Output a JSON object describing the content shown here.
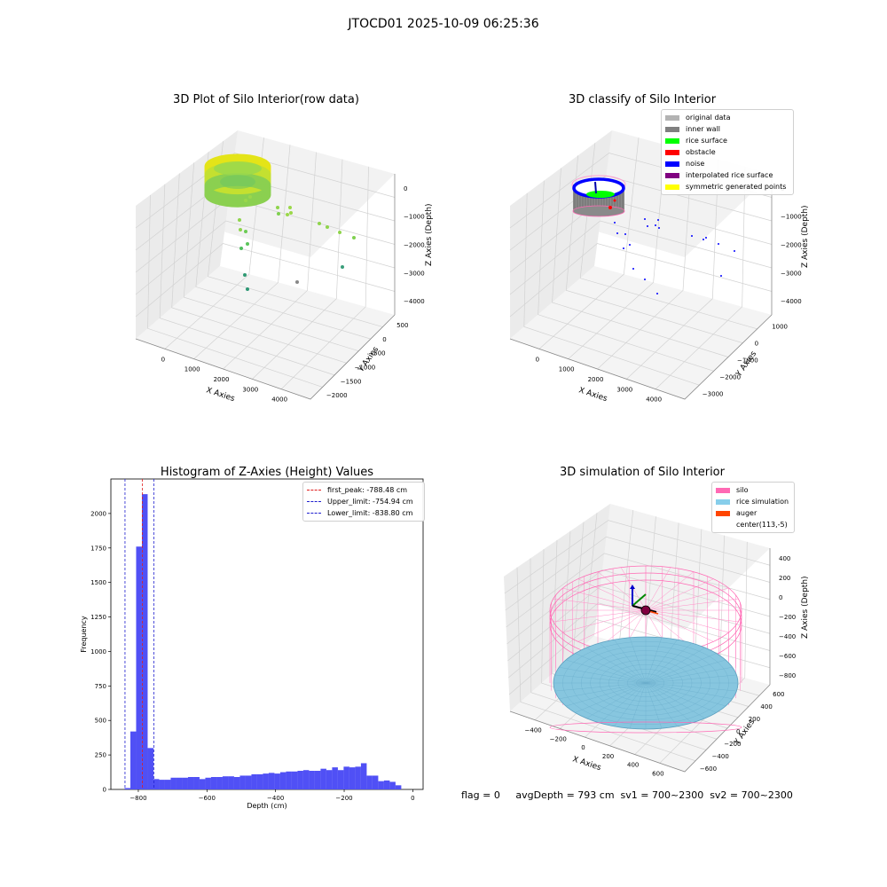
{
  "suptitle": "JTOCD01 2025-10-09 06:25:36",
  "footer": "flag = 0     avgDepth = 793 cm  sv1 = 700~2300  sv2 = 700~2300",
  "chart_data": [
    {
      "type": "scatter3d",
      "title": "3D Plot of Silo Interior(row data)",
      "xlabel": "X Axies",
      "ylabel": "Y Axies",
      "zlabel": "Z Axies (Depth)",
      "xticks": [
        "0",
        "1000",
        "2000",
        "3000",
        "4000"
      ],
      "yticks": [
        "500",
        "0",
        "−500",
        "−1000",
        "−1500",
        "−2000"
      ],
      "zticks": [
        "0",
        "−1000",
        "−2000",
        "−3000",
        "−4000"
      ],
      "colormap": "viridis"
    },
    {
      "type": "scatter3d",
      "title": "3D classify of Silo Interior",
      "xlabel": "X Axies",
      "ylabel": "Y Axies",
      "zlabel": "Z Axies (Depth)",
      "xticks": [
        "0",
        "1000",
        "2000",
        "3000",
        "4000"
      ],
      "yticks": [
        "1000",
        "0",
        "−1000",
        "−2000",
        "−3000"
      ],
      "zticks": [
        "0",
        "−1000",
        "−2000",
        "−3000",
        "−4000"
      ],
      "legend": [
        {
          "label": "original data",
          "color": "#b3b3b3"
        },
        {
          "label": "inner wall",
          "color": "#808080"
        },
        {
          "label": "rice surface",
          "color": "#00ff00"
        },
        {
          "label": "obstacle",
          "color": "#ff0000"
        },
        {
          "label": "noise",
          "color": "#0000ff"
        },
        {
          "label": "interpolated rice surface",
          "color": "#800080"
        },
        {
          "label": "symmetric generated points",
          "color": "#ffff00"
        }
      ]
    },
    {
      "type": "bar",
      "title": "Histogram of Z-Axies (Height) Values",
      "xlabel": "Depth (cm)",
      "ylabel": "Frequency",
      "xlim": [
        -880,
        30
      ],
      "ylim": [
        0,
        2250
      ],
      "xticks": [
        -800,
        -600,
        -400,
        -200,
        0
      ],
      "yticks": [
        0,
        250,
        500,
        750,
        1000,
        1250,
        1500,
        1750,
        2000
      ],
      "bin_edges_start": -840,
      "bin_width": 16.8,
      "values": [
        10,
        420,
        1760,
        2140,
        300,
        75,
        70,
        70,
        85,
        85,
        85,
        90,
        90,
        75,
        85,
        90,
        90,
        95,
        95,
        90,
        100,
        100,
        110,
        110,
        115,
        120,
        115,
        125,
        130,
        130,
        135,
        140,
        135,
        135,
        150,
        140,
        160,
        140,
        165,
        160,
        165,
        190,
        100,
        100,
        60,
        65,
        55,
        30
      ],
      "bar_color": "#5050f5",
      "vlines": [
        {
          "label": "first_peak: -788.48 cm",
          "x": -788.48,
          "color": "#e01e1e"
        },
        {
          "label": "Upper_limit: -754.94 cm",
          "x": -754.94,
          "color": "#1e1ecf"
        },
        {
          "label": "Lower_limit: -838.80 cm",
          "x": -838.8,
          "color": "#1e1ecf"
        }
      ],
      "legend_position": "top-right"
    },
    {
      "type": "surface3d",
      "title": "3D simulation of Silo Interior",
      "xlabel": "X Axies",
      "ylabel": "Y Axies",
      "zlabel": "Z Axies (Depth)",
      "xticks": [
        "−400",
        "−200",
        "0",
        "200",
        "400",
        "600"
      ],
      "yticks": [
        "600",
        "400",
        "200",
        "0",
        "−200",
        "−400",
        "−600"
      ],
      "zticks": [
        "400",
        "200",
        "0",
        "−200",
        "−400",
        "−600",
        "−800"
      ],
      "legend": [
        {
          "label": "silo",
          "color": "#ff69b4"
        },
        {
          "label": "rice simulation",
          "color": "#87ceeb"
        },
        {
          "label": "auger",
          "color": "#ff4500"
        },
        {
          "label": "center(113,-5)",
          "color": ""
        }
      ]
    }
  ]
}
